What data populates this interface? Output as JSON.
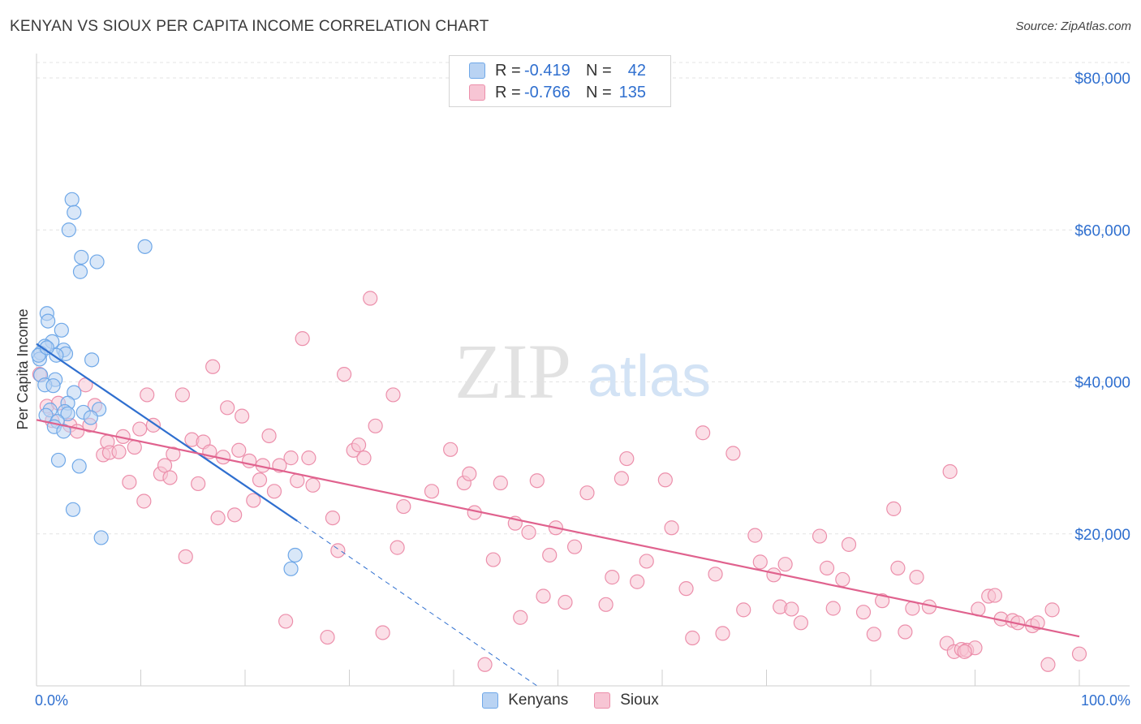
{
  "header": {
    "title": "KENYAN VS SIOUX PER CAPITA INCOME CORRELATION CHART",
    "source": "Source: ZipAtlas.com"
  },
  "watermark": {
    "zip": "ZIP",
    "atlas": "atlas"
  },
  "legend": {
    "rows": [
      {
        "r_label": "R =",
        "r_value": "-0.419",
        "n_label": "N =",
        "n_value": "42",
        "color": "#6fa8e8",
        "fill": "#b9d3f3"
      },
      {
        "r_label": "R =",
        "r_value": "-0.766",
        "n_label": "N =",
        "n_value": "135",
        "color": "#ec8fab",
        "fill": "#f7c5d4"
      }
    ]
  },
  "bottom_legend": {
    "kenyans": "Kenyans",
    "sioux": "Sioux"
  },
  "colors": {
    "kenyan_stroke": "#6fa8e8",
    "kenyan_fill": "#b9d3f3",
    "kenyan_line": "#2f6fcf",
    "sioux_stroke": "#ec8fab",
    "sioux_fill": "#f7c5d4",
    "sioux_line": "#e0628e",
    "axis_label": "#2f6fcf",
    "grid": "#e3e3e3"
  },
  "chart_data": {
    "type": "scatter",
    "title": "KENYAN VS SIOUX PER CAPITA INCOME CORRELATION CHART",
    "xlabel": "",
    "ylabel": "Per Capita Income",
    "xlim": [
      0,
      100
    ],
    "ylim": [
      0,
      80000
    ],
    "x_tick_labels": [
      "0.0%",
      "100.0%"
    ],
    "y_ticks": [
      20000,
      40000,
      60000,
      80000
    ],
    "y_tick_labels": [
      "$20,000",
      "$40,000",
      "$60,000",
      "$80,000"
    ],
    "grid": true,
    "series": [
      {
        "name": "Kenyans",
        "R": -0.419,
        "N": 42,
        "trend": {
          "x0": 0,
          "y0": 45000,
          "x1": 25,
          "y1": 21700,
          "dashed_to_x": 48,
          "dashed_to_y": 0
        },
        "points": [
          [
            3.4,
            64000
          ],
          [
            3.6,
            62300
          ],
          [
            3.1,
            60000
          ],
          [
            10.4,
            57800
          ],
          [
            4.3,
            56400
          ],
          [
            5.8,
            55800
          ],
          [
            4.2,
            54500
          ],
          [
            1.0,
            49000
          ],
          [
            1.1,
            48000
          ],
          [
            2.4,
            46800
          ],
          [
            1.5,
            45300
          ],
          [
            0.8,
            44700
          ],
          [
            0.4,
            43800
          ],
          [
            2.6,
            44200
          ],
          [
            2.8,
            43700
          ],
          [
            1.9,
            43500
          ],
          [
            0.3,
            43000
          ],
          [
            5.3,
            42900
          ],
          [
            0.4,
            40900
          ],
          [
            1.8,
            40300
          ],
          [
            0.8,
            39600
          ],
          [
            1.6,
            39500
          ],
          [
            3.6,
            38600
          ],
          [
            3.0,
            37200
          ],
          [
            1.3,
            36300
          ],
          [
            2.7,
            36100
          ],
          [
            0.9,
            35600
          ],
          [
            3.0,
            35800
          ],
          [
            6.0,
            36400
          ],
          [
            4.5,
            36000
          ],
          [
            5.2,
            35300
          ],
          [
            2.0,
            34800
          ],
          [
            1.7,
            34100
          ],
          [
            2.6,
            33500
          ],
          [
            2.1,
            29700
          ],
          [
            4.1,
            28900
          ],
          [
            3.5,
            23200
          ],
          [
            6.2,
            19500
          ],
          [
            24.8,
            17200
          ],
          [
            24.4,
            15400
          ],
          [
            0.2,
            43500
          ],
          [
            1.0,
            44500
          ]
        ]
      },
      {
        "name": "Sioux",
        "R": -0.766,
        "N": 135,
        "trend": {
          "x0": 0,
          "y0": 35000,
          "x1": 100,
          "y1": 6500
        },
        "points": [
          [
            0.3,
            41000
          ],
          [
            1.0,
            36800
          ],
          [
            1.5,
            34900
          ],
          [
            2.1,
            37200
          ],
          [
            3.2,
            34300
          ],
          [
            3.9,
            33500
          ],
          [
            4.7,
            39600
          ],
          [
            5.6,
            36900
          ],
          [
            5.1,
            34300
          ],
          [
            6.4,
            30400
          ],
          [
            6.8,
            32100
          ],
          [
            7.0,
            30700
          ],
          [
            7.9,
            30800
          ],
          [
            8.3,
            32800
          ],
          [
            8.9,
            26800
          ],
          [
            9.4,
            31400
          ],
          [
            9.9,
            33800
          ],
          [
            10.3,
            24300
          ],
          [
            10.6,
            38300
          ],
          [
            11.2,
            34300
          ],
          [
            11.9,
            27900
          ],
          [
            12.3,
            29000
          ],
          [
            12.8,
            27400
          ],
          [
            13.1,
            30500
          ],
          [
            14.0,
            38300
          ],
          [
            14.3,
            17000
          ],
          [
            14.9,
            32400
          ],
          [
            15.5,
            26600
          ],
          [
            16.0,
            32100
          ],
          [
            16.6,
            30800
          ],
          [
            16.9,
            42000
          ],
          [
            17.4,
            22100
          ],
          [
            17.9,
            30100
          ],
          [
            18.3,
            36600
          ],
          [
            19.0,
            22500
          ],
          [
            19.4,
            31000
          ],
          [
            19.7,
            35500
          ],
          [
            20.4,
            29600
          ],
          [
            20.8,
            24400
          ],
          [
            21.4,
            27100
          ],
          [
            21.7,
            29000
          ],
          [
            22.3,
            32900
          ],
          [
            22.8,
            25600
          ],
          [
            23.3,
            29000
          ],
          [
            23.9,
            8500
          ],
          [
            24.4,
            30000
          ],
          [
            25.0,
            27000
          ],
          [
            25.5,
            45700
          ],
          [
            26.1,
            30000
          ],
          [
            26.5,
            26400
          ],
          [
            27.9,
            6400
          ],
          [
            28.4,
            22100
          ],
          [
            28.9,
            17800
          ],
          [
            29.5,
            41000
          ],
          [
            30.4,
            31000
          ],
          [
            30.9,
            31700
          ],
          [
            31.4,
            30000
          ],
          [
            32.0,
            51000
          ],
          [
            32.5,
            34200
          ],
          [
            33.2,
            7000
          ],
          [
            34.2,
            38300
          ],
          [
            34.6,
            18200
          ],
          [
            35.2,
            23600
          ],
          [
            37.9,
            25600
          ],
          [
            39.7,
            31100
          ],
          [
            41.0,
            26700
          ],
          [
            41.5,
            27900
          ],
          [
            42.0,
            22800
          ],
          [
            43.0,
            2800
          ],
          [
            43.8,
            16600
          ],
          [
            44.5,
            26700
          ],
          [
            45.9,
            21400
          ],
          [
            46.4,
            9000
          ],
          [
            47.2,
            20200
          ],
          [
            48.0,
            27000
          ],
          [
            48.6,
            11800
          ],
          [
            49.2,
            17200
          ],
          [
            49.8,
            20800
          ],
          [
            50.7,
            11000
          ],
          [
            51.6,
            18300
          ],
          [
            52.8,
            25400
          ],
          [
            54.6,
            10700
          ],
          [
            55.2,
            14300
          ],
          [
            56.1,
            27300
          ],
          [
            56.6,
            29900
          ],
          [
            57.6,
            13700
          ],
          [
            58.5,
            16400
          ],
          [
            60.3,
            27100
          ],
          [
            60.9,
            20800
          ],
          [
            62.3,
            12800
          ],
          [
            62.9,
            6300
          ],
          [
            63.9,
            33300
          ],
          [
            65.1,
            14700
          ],
          [
            65.8,
            6900
          ],
          [
            66.8,
            30600
          ],
          [
            67.8,
            10000
          ],
          [
            68.9,
            19800
          ],
          [
            69.4,
            16300
          ],
          [
            70.7,
            14600
          ],
          [
            71.3,
            10400
          ],
          [
            71.8,
            16000
          ],
          [
            72.4,
            10100
          ],
          [
            73.3,
            8300
          ],
          [
            75.1,
            19700
          ],
          [
            75.8,
            15500
          ],
          [
            76.4,
            10200
          ],
          [
            77.3,
            14000
          ],
          [
            77.9,
            18600
          ],
          [
            79.3,
            9700
          ],
          [
            80.3,
            6800
          ],
          [
            81.1,
            11200
          ],
          [
            82.2,
            23300
          ],
          [
            82.6,
            15500
          ],
          [
            83.3,
            7100
          ],
          [
            84.0,
            10200
          ],
          [
            84.4,
            14300
          ],
          [
            85.6,
            10400
          ],
          [
            87.3,
            5600
          ],
          [
            87.6,
            28200
          ],
          [
            88.0,
            4500
          ],
          [
            88.7,
            4800
          ],
          [
            89.2,
            4700
          ],
          [
            90.3,
            10100
          ],
          [
            91.3,
            11800
          ],
          [
            91.9,
            11900
          ],
          [
            92.5,
            8800
          ],
          [
            93.6,
            8600
          ],
          [
            94.1,
            8300
          ],
          [
            95.5,
            7900
          ],
          [
            96.0,
            8300
          ],
          [
            97.0,
            2800
          ],
          [
            97.4,
            10000
          ],
          [
            100.0,
            4200
          ],
          [
            90.0,
            5000
          ],
          [
            89.0,
            4500
          ]
        ]
      }
    ]
  }
}
